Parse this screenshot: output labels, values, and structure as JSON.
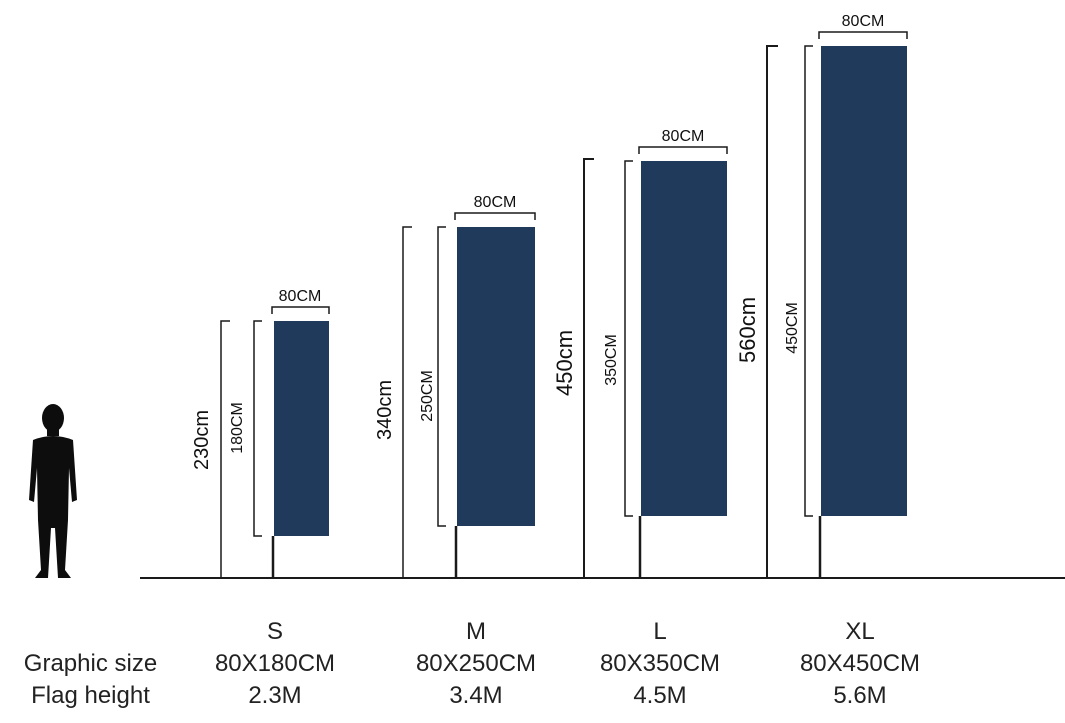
{
  "legend": {
    "graphic_size_label": "Graphic size",
    "flag_height_label": "Flag height"
  },
  "colors": {
    "flag": "#1f3a5a",
    "line": "#1a1a1a"
  },
  "flags": [
    {
      "id": "s",
      "size": "S",
      "graphic_size": "80X180CM",
      "flag_height": "2.3M",
      "width_label": "80CM",
      "graphic_height_label": "180CM",
      "total_height_label": "230cm"
    },
    {
      "id": "m",
      "size": "M",
      "graphic_size": "80X250CM",
      "flag_height": "3.4M",
      "width_label": "80CM",
      "graphic_height_label": "250CM",
      "total_height_label": "340cm"
    },
    {
      "id": "l",
      "size": "L",
      "graphic_size": "80X350CM",
      "flag_height": "4.5M",
      "width_label": "80CM",
      "graphic_height_label": "350CM",
      "total_height_label": "450cm"
    },
    {
      "id": "xl",
      "size": "XL",
      "graphic_size": "80X450CM",
      "flag_height": "5.6M",
      "width_label": "80CM",
      "graphic_height_label": "450CM",
      "total_height_label": "560cm"
    }
  ]
}
